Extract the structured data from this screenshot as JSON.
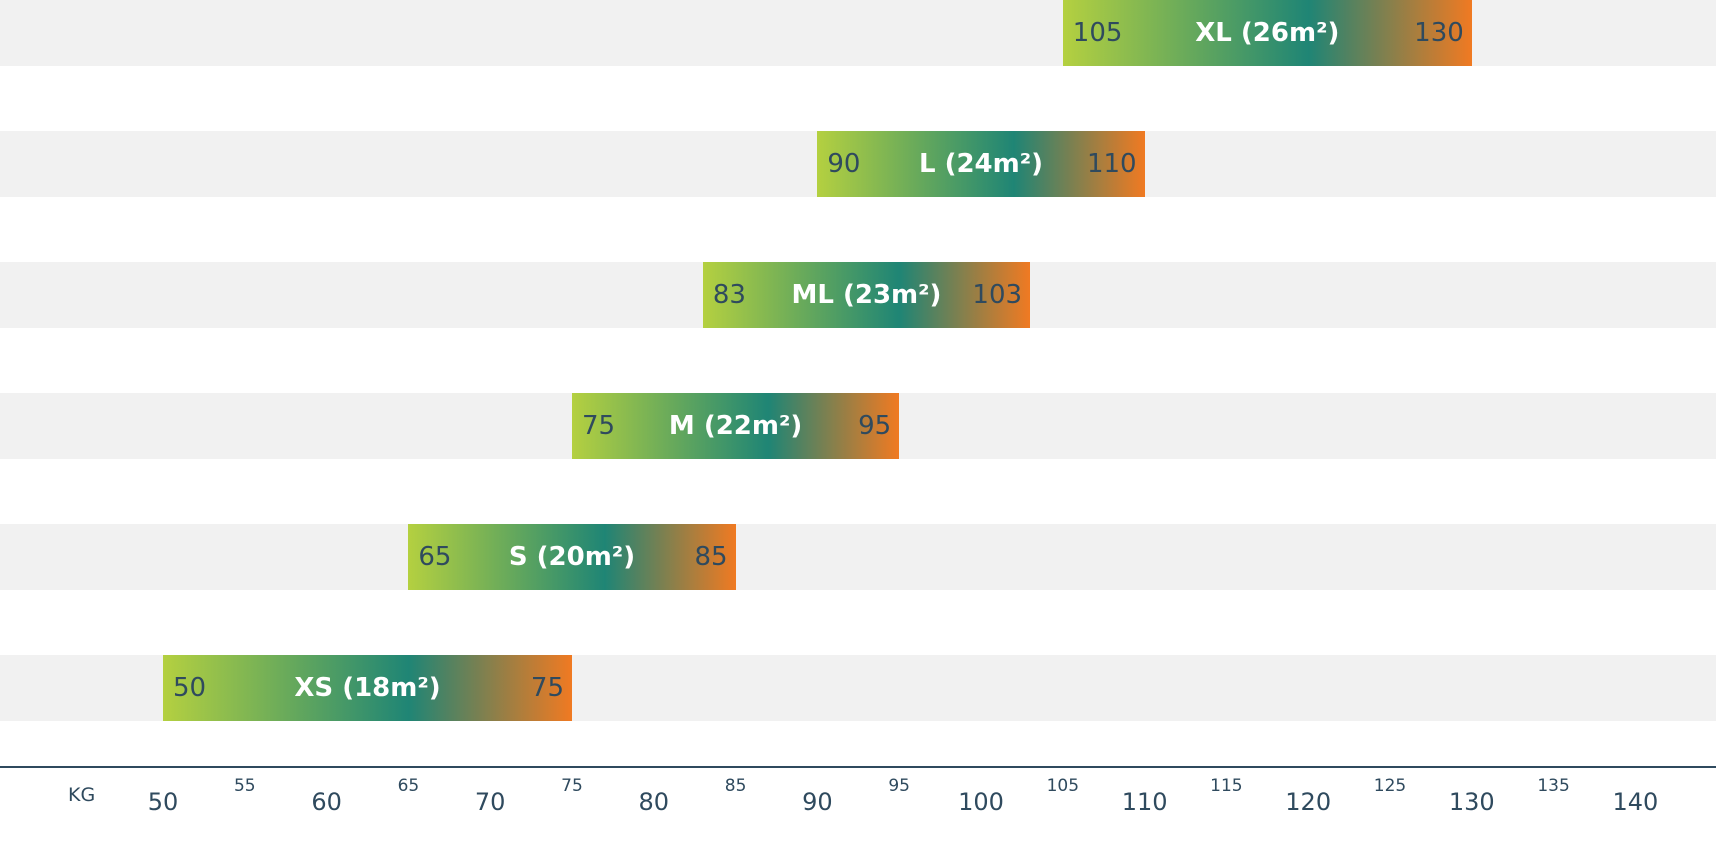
{
  "chart_data": {
    "type": "range-bar",
    "unit": "KG",
    "xlim": [
      50,
      140
    ],
    "major_ticks": [
      50,
      60,
      70,
      80,
      90,
      100,
      110,
      120,
      130,
      140
    ],
    "minor_ticks": [
      55,
      65,
      75,
      85,
      95,
      105,
      115,
      125,
      135
    ],
    "bars": [
      {
        "label": "XS (18m²)",
        "min": 50,
        "max": 75,
        "min_label": "50",
        "max_label": "75"
      },
      {
        "label": "S (20m²)",
        "min": 65,
        "max": 85,
        "min_label": "65",
        "max_label": "85"
      },
      {
        "label": "M (22m²)",
        "min": 75,
        "max": 95,
        "min_label": "75",
        "max_label": "95"
      },
      {
        "label": "ML (23m²)",
        "min": 83,
        "max": 103,
        "min_label": "83",
        "max_label": "103"
      },
      {
        "label": "L (24m²)",
        "min": 90,
        "max": 110,
        "min_label": "90",
        "max_label": "110"
      },
      {
        "label": "XL (26m²)",
        "min": 105,
        "max": 130,
        "min_label": "105",
        "max_label": "130"
      }
    ],
    "grid": false
  },
  "colors": {
    "gradient_start": "#b4d040",
    "gradient_mid": "#1f8575",
    "gradient_end": "#f07a22",
    "stripe": "#f1f1f1",
    "axis": "#2f4a5e",
    "text": "#2f4a5e",
    "bar_label": "#ffffff"
  }
}
